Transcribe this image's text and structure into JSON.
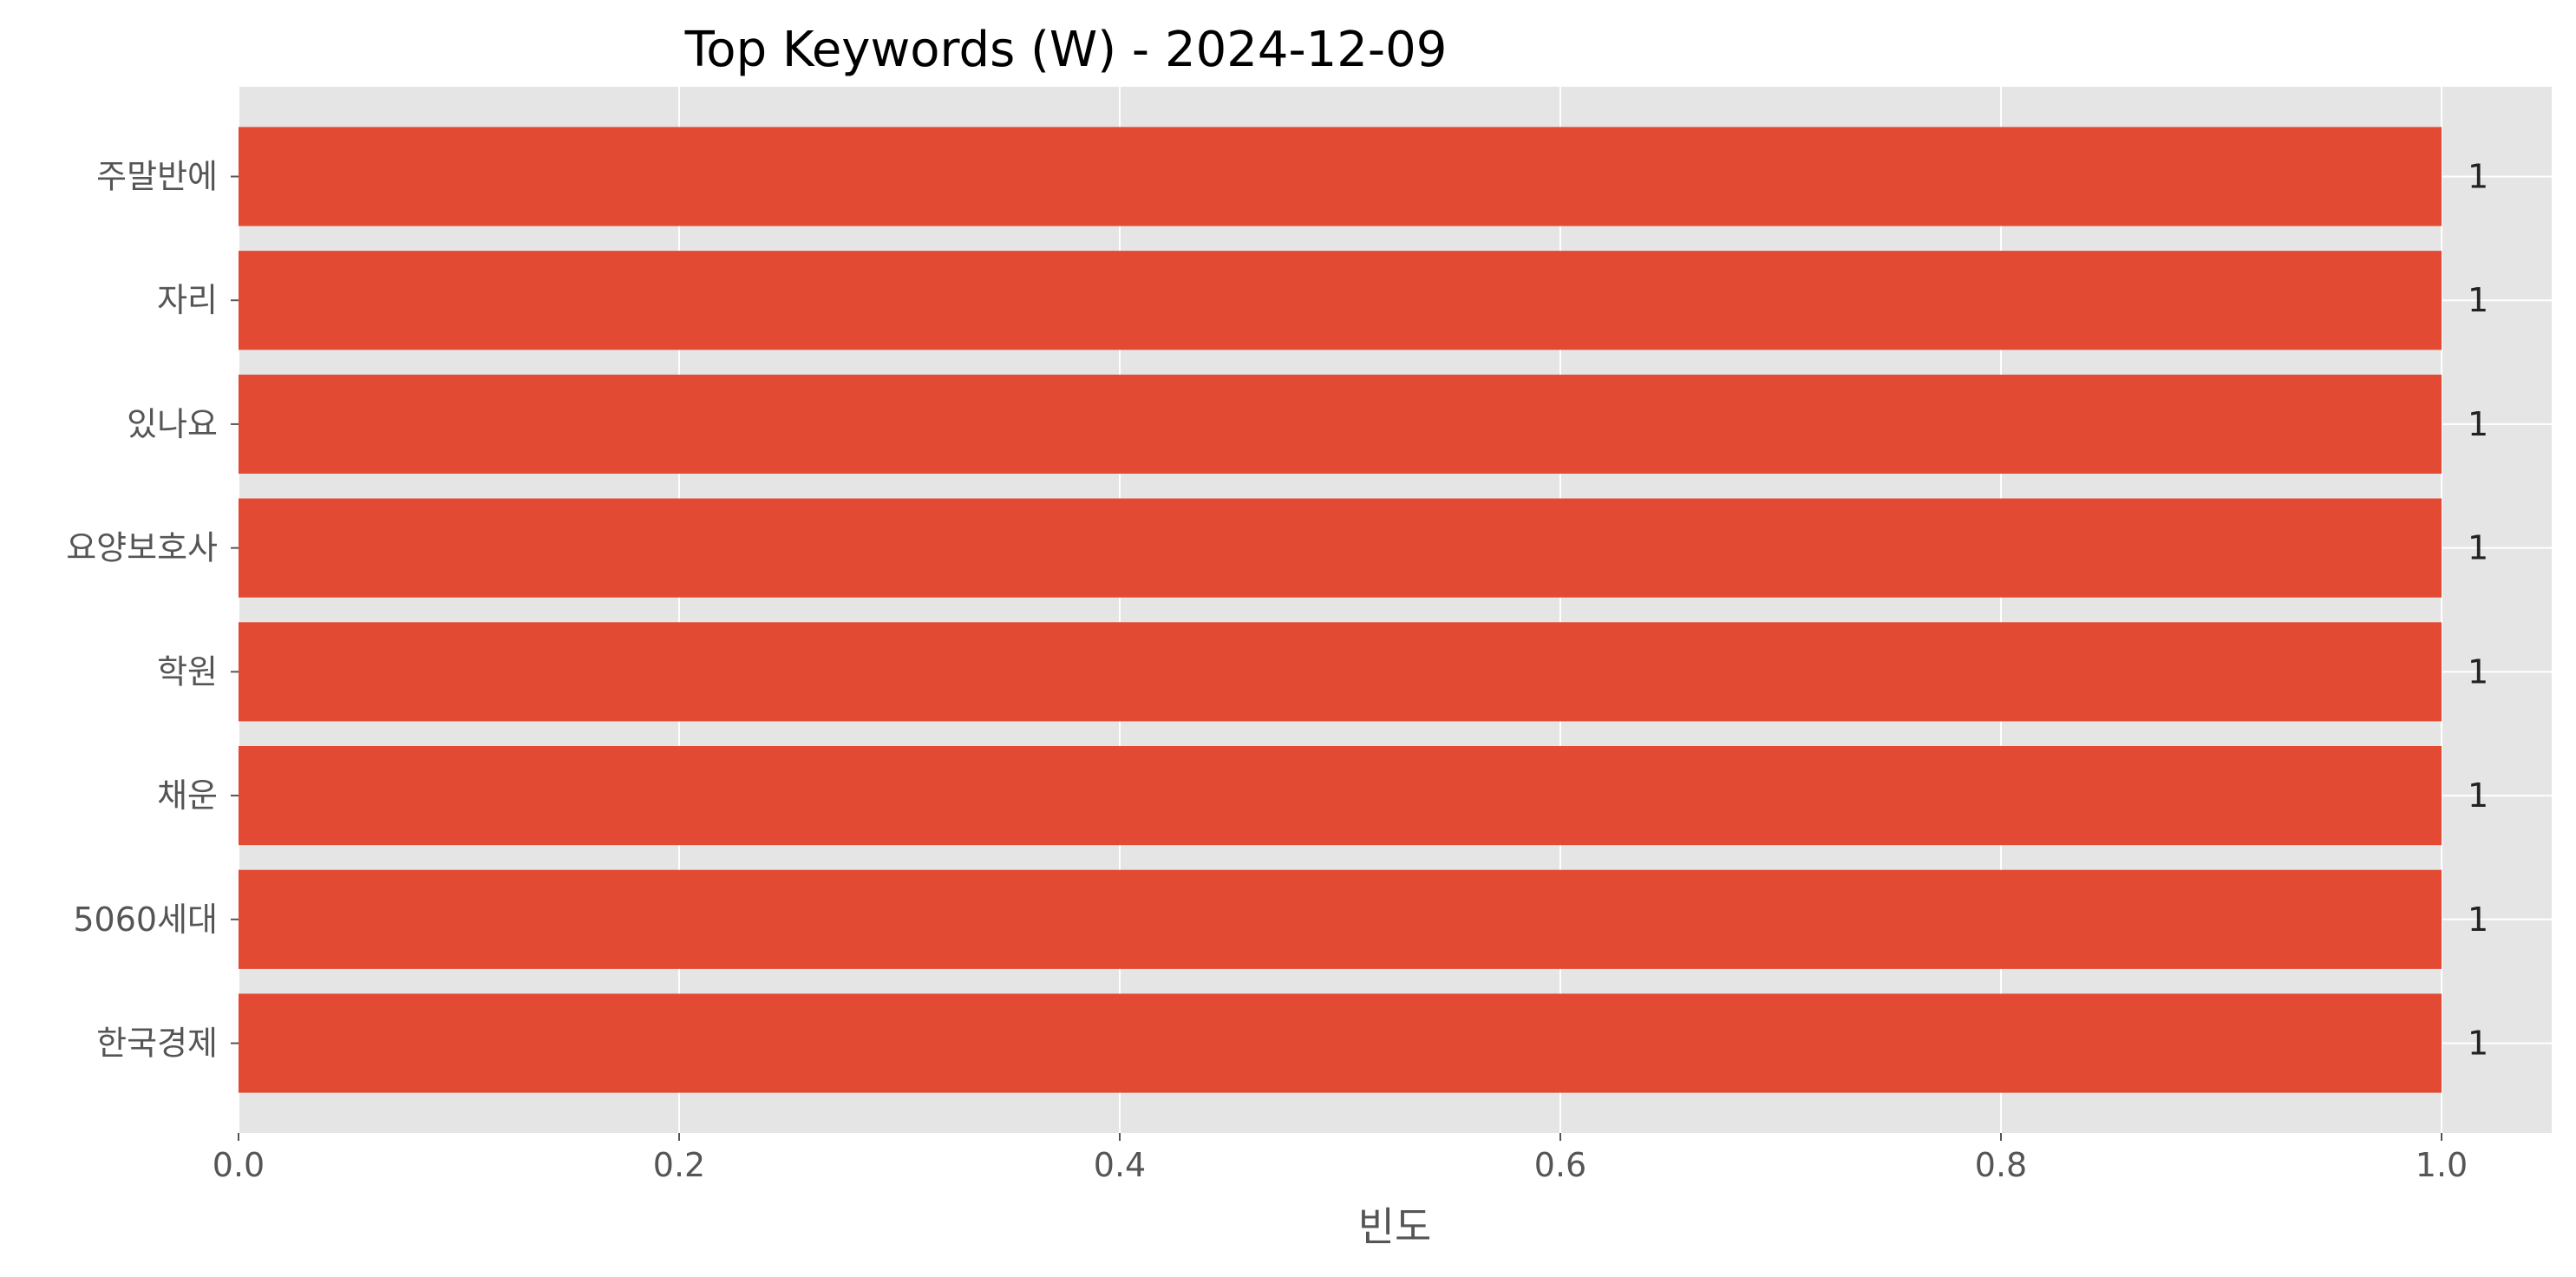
{
  "chart_data": {
    "type": "bar",
    "orientation": "horizontal",
    "title": "Top Keywords (W) - 2024-12-09",
    "xlabel": "빈도",
    "ylabel": "",
    "categories": [
      "주말반에",
      "자리",
      "있나요",
      "요양보호사",
      "학원",
      "채운",
      "5060세대",
      "한국경제"
    ],
    "values": [
      1,
      1,
      1,
      1,
      1,
      1,
      1,
      1
    ],
    "data_labels": [
      "1",
      "1",
      "1",
      "1",
      "1",
      "1",
      "1",
      "1"
    ],
    "xlim": [
      0,
      1.05
    ],
    "xticks": [
      0.0,
      0.2,
      0.4,
      0.6,
      0.8,
      1.0
    ],
    "xtick_labels": [
      "0.0",
      "0.2",
      "0.4",
      "0.6",
      "0.8",
      "1.0"
    ],
    "grid": true,
    "legend": "none",
    "colors": {
      "bar": "#E24A33",
      "plot_background": "#E5E5E5",
      "grid": "#FFFFFF",
      "tick_text": "#555555"
    }
  }
}
